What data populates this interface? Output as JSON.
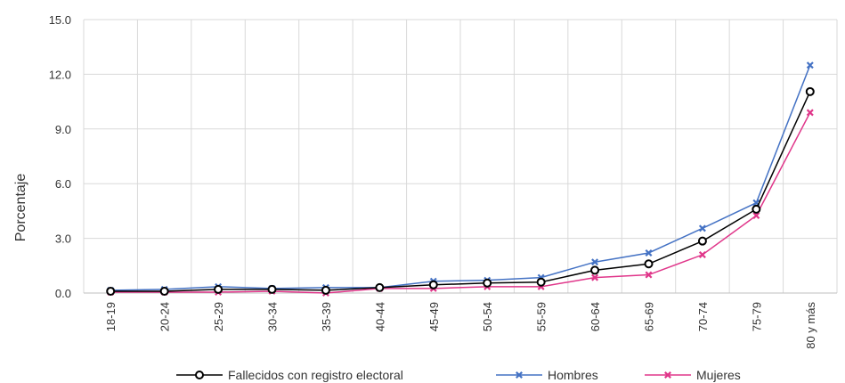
{
  "chart_data": {
    "type": "line",
    "ylabel": "Porcentaje",
    "xlabel": "",
    "ylim": [
      0,
      15
    ],
    "yticks": [
      "0.0",
      "3.0",
      "6.0",
      "9.0",
      "12.0",
      "15.0"
    ],
    "categories": [
      "18-19",
      "20-24",
      "25-29",
      "30-34",
      "35-39",
      "40-44",
      "45-49",
      "50-54",
      "55-59",
      "60-64",
      "65-69",
      "70-74",
      "75-79",
      "80 y más"
    ],
    "grid": true,
    "legend_position": "bottom",
    "series": [
      {
        "name": "Fallecidos con registro electoral",
        "color": "#000000",
        "marker": "circle",
        "values": [
          0.1,
          0.1,
          0.2,
          0.2,
          0.15,
          0.3,
          0.45,
          0.55,
          0.6,
          1.25,
          1.6,
          2.85,
          4.6,
          11.05
        ]
      },
      {
        "name": "Hombres",
        "color": "#4472C4",
        "marker": "x",
        "values": [
          0.15,
          0.2,
          0.35,
          0.25,
          0.3,
          0.3,
          0.65,
          0.7,
          0.85,
          1.7,
          2.2,
          3.55,
          4.95,
          12.5
        ]
      },
      {
        "name": "Mujeres",
        "color": "#E0368A",
        "marker": "x",
        "values": [
          0.05,
          0.05,
          0.05,
          0.1,
          0.0,
          0.25,
          0.25,
          0.35,
          0.35,
          0.85,
          1.0,
          2.1,
          4.25,
          9.9
        ]
      }
    ]
  }
}
